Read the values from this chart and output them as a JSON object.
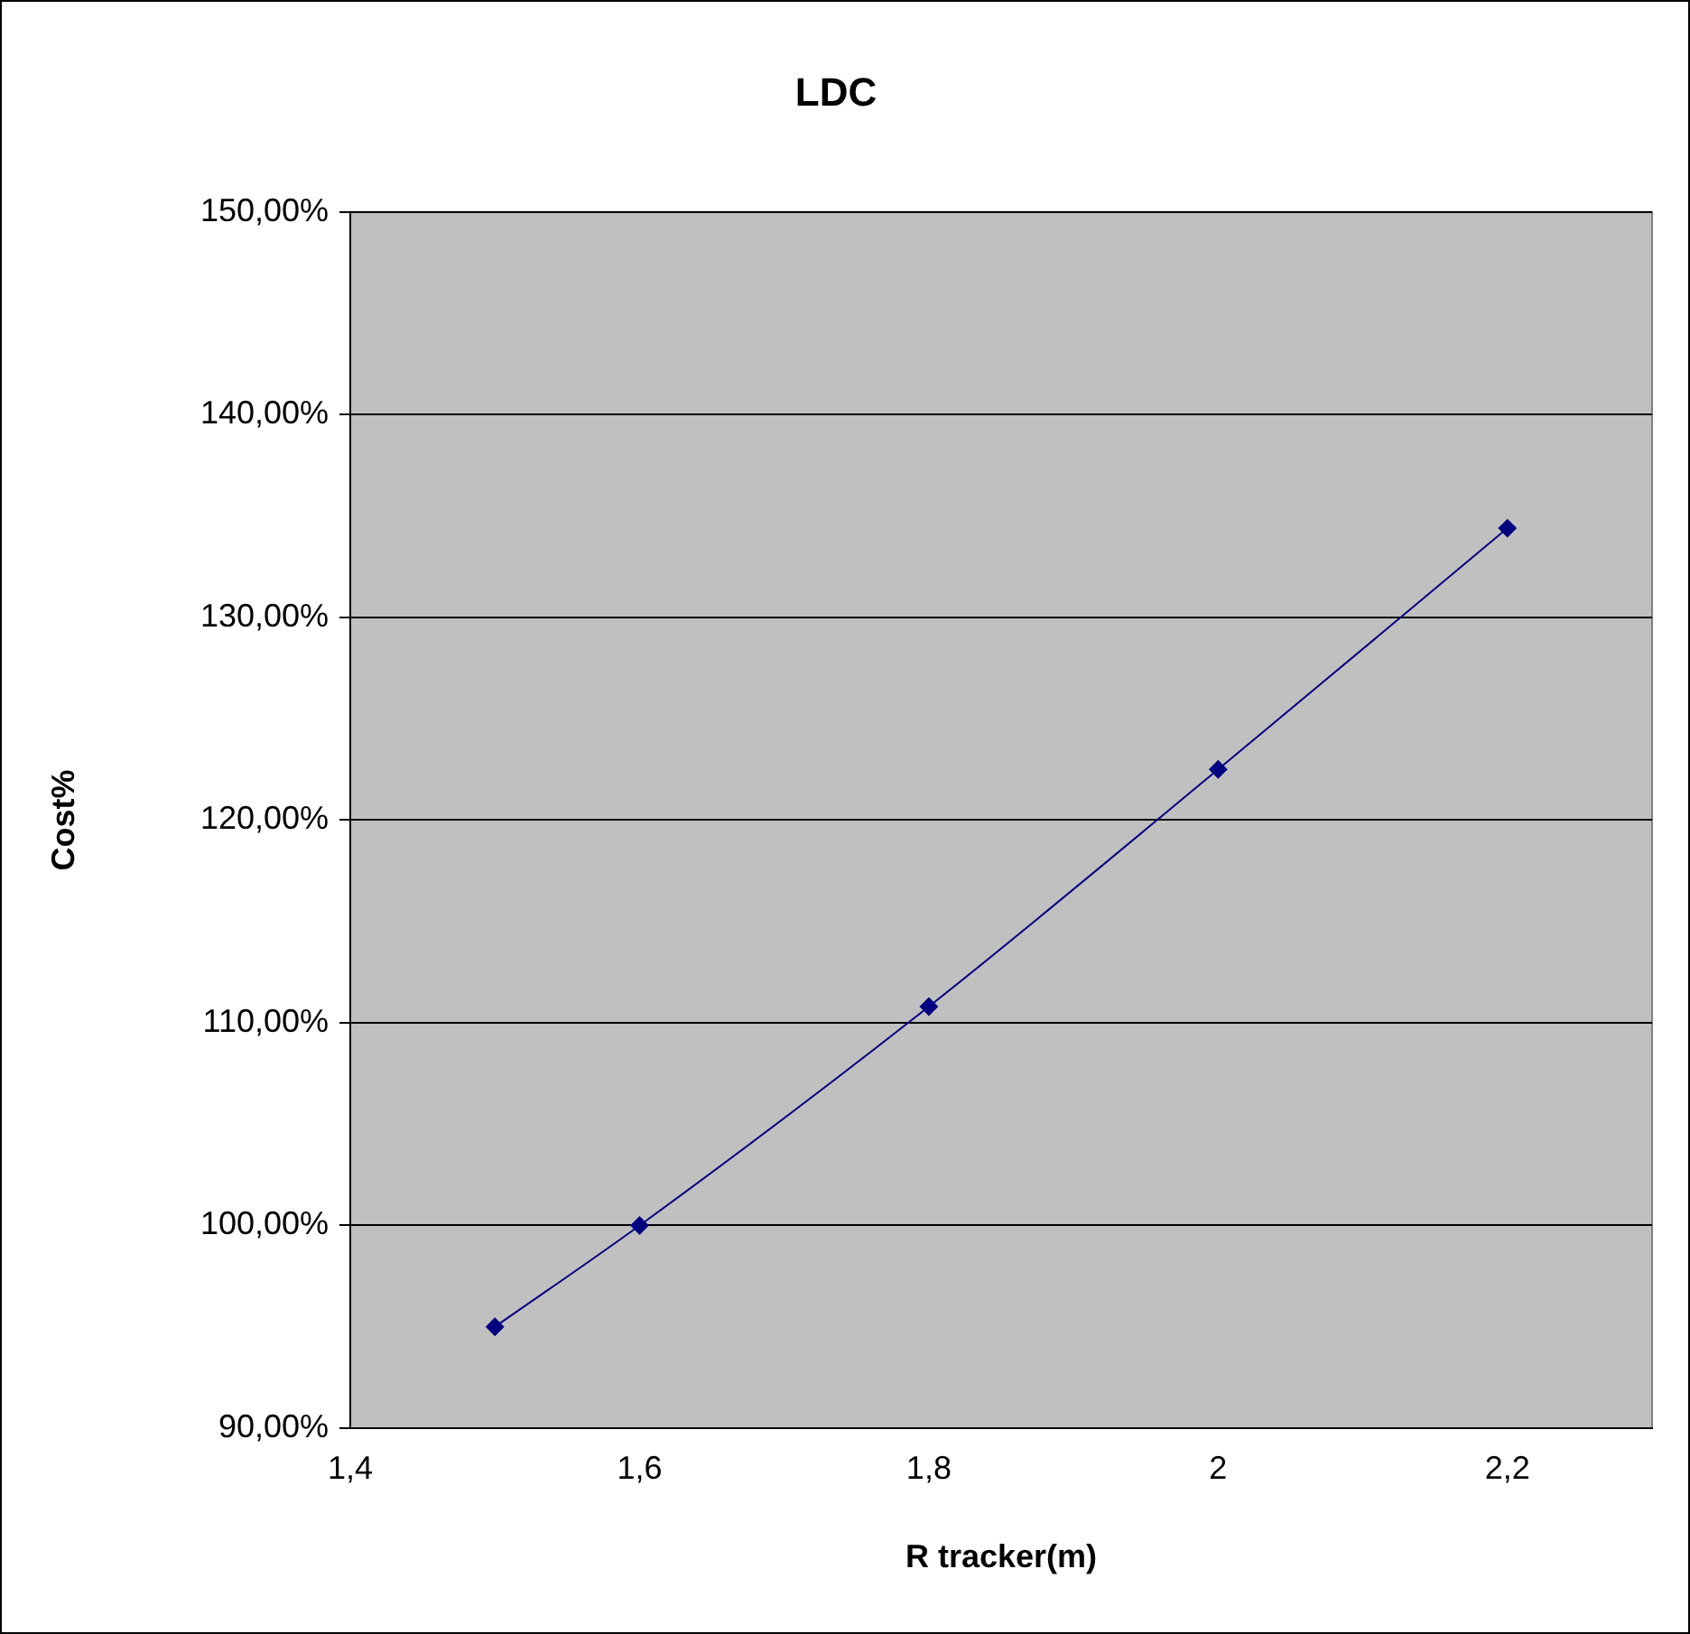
{
  "chart_data": {
    "type": "line",
    "title": "LDC",
    "xlabel": "R tracker(m)",
    "ylabel": "Cost%",
    "x": [
      1.5,
      1.6,
      1.8,
      2.0,
      2.2
    ],
    "series": [
      {
        "color": "#000080",
        "values": [
          95.0,
          100.0,
          110.8,
          122.5,
          134.4
        ]
      }
    ],
    "xlim": [
      1.4,
      2.3
    ],
    "xticks": [
      {
        "value": 1.4,
        "label": "1,4"
      },
      {
        "value": 1.6,
        "label": "1,6"
      },
      {
        "value": 1.8,
        "label": "1,8"
      },
      2,
      {
        "value": 2.2,
        "label": "2,2"
      }
    ],
    "ylim": [
      90,
      150
    ],
    "yticks": [
      {
        "value": 90,
        "label": "90,00%"
      },
      {
        "value": 100,
        "label": "100,00%"
      },
      {
        "value": 110,
        "label": "110,00%"
      },
      {
        "value": 120,
        "label": "120,00%"
      },
      {
        "value": 130,
        "label": "130,00%"
      },
      {
        "value": 140,
        "label": "140,00%"
      },
      {
        "value": 150,
        "label": "150,00%"
      }
    ],
    "grid": "y",
    "legend": false,
    "marker": "diamond",
    "line_style": "solid"
  }
}
